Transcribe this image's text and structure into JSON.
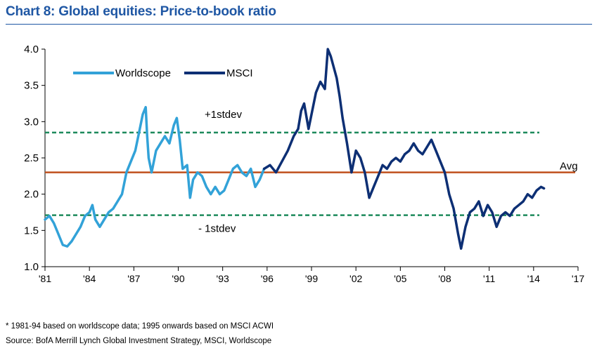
{
  "title": "Chart 8: Global equities: Price-to-book ratio",
  "footnote": "* 1981-94 based on worldscope data; 1995 onwards based on MSCI ACWI",
  "source": "Source: BofA Merrill Lynch Global Investment Strategy, MSCI, Worldscope",
  "colors": {
    "title": "#1f57a4",
    "worldscope": "#32a2d8",
    "msci": "#0d2f74",
    "avg": "#c0501d",
    "stdev": "#1d8a5c"
  },
  "chart_data": {
    "type": "line",
    "title": "Chart 8: Global equities: Price-to-book ratio",
    "xlabel": "",
    "ylabel": "",
    "xlim": [
      1981,
      2017
    ],
    "ylim": [
      1.0,
      4.0
    ],
    "grid": false,
    "legend_position": "top-left",
    "x_ticks": [
      1981,
      1984,
      1987,
      1990,
      1993,
      1996,
      1999,
      2002,
      2005,
      2008,
      2011,
      2014,
      2017
    ],
    "x_tick_labels": [
      "'81",
      "'84",
      "'87",
      "'90",
      "'93",
      "'96",
      "'99",
      "'02",
      "'05",
      "'08",
      "'11",
      "'14",
      "'17"
    ],
    "y_ticks": [
      1.0,
      1.5,
      2.0,
      2.5,
      3.0,
      3.5,
      4.0
    ],
    "y_tick_labels": [
      "1.0",
      "1.5",
      "2.0",
      "2.5",
      "3.0",
      "3.5",
      "4.0"
    ],
    "series": [
      {
        "name": "Worldscope",
        "x": [
          1981.0,
          1981.3,
          1981.6,
          1981.9,
          1982.2,
          1982.5,
          1982.8,
          1983.1,
          1983.4,
          1983.7,
          1984.0,
          1984.2,
          1984.4,
          1984.7,
          1985.0,
          1985.3,
          1985.6,
          1985.9,
          1986.2,
          1986.5,
          1986.8,
          1987.1,
          1987.4,
          1987.6,
          1987.8,
          1987.9,
          1988.0,
          1988.2,
          1988.5,
          1988.8,
          1989.1,
          1989.4,
          1989.7,
          1989.9,
          1990.1,
          1990.3,
          1990.6,
          1990.8,
          1991.0,
          1991.3,
          1991.6,
          1991.9,
          1992.2,
          1992.5,
          1992.8,
          1993.1,
          1993.4,
          1993.7,
          1994.0,
          1994.3,
          1994.6,
          1994.9,
          1995.2,
          1995.5,
          1995.8
        ],
        "values": [
          1.65,
          1.7,
          1.6,
          1.45,
          1.3,
          1.28,
          1.35,
          1.45,
          1.55,
          1.7,
          1.75,
          1.85,
          1.65,
          1.55,
          1.65,
          1.75,
          1.8,
          1.9,
          2.0,
          2.3,
          2.45,
          2.6,
          2.9,
          3.1,
          3.2,
          2.8,
          2.5,
          2.3,
          2.6,
          2.7,
          2.8,
          2.7,
          2.95,
          3.05,
          2.75,
          2.35,
          2.4,
          1.95,
          2.2,
          2.3,
          2.25,
          2.1,
          2.0,
          2.1,
          2.0,
          2.05,
          2.2,
          2.35,
          2.4,
          2.3,
          2.25,
          2.35,
          2.1,
          2.2,
          2.35
        ]
      },
      {
        "name": "MSCI",
        "x": [
          1995.8,
          1996.2,
          1996.6,
          1997.0,
          1997.4,
          1997.8,
          1998.1,
          1998.3,
          1998.5,
          1998.8,
          1999.0,
          1999.3,
          1999.6,
          1999.9,
          2000.1,
          2000.3,
          2000.5,
          2000.7,
          2000.9,
          2001.1,
          2001.4,
          2001.7,
          2002.0,
          2002.3,
          2002.6,
          2002.9,
          2003.2,
          2003.5,
          2003.8,
          2004.1,
          2004.4,
          2004.7,
          2005.0,
          2005.3,
          2005.6,
          2005.9,
          2006.2,
          2006.5,
          2006.8,
          2007.1,
          2007.4,
          2007.7,
          2008.0,
          2008.3,
          2008.6,
          2008.9,
          2009.1,
          2009.4,
          2009.7,
          2010.0,
          2010.3,
          2010.6,
          2010.9,
          2011.2,
          2011.5,
          2011.8,
          2012.1,
          2012.4,
          2012.7,
          2013.0,
          2013.3,
          2013.6,
          2013.9,
          2014.2,
          2014.5,
          2014.7
        ],
        "values": [
          2.35,
          2.4,
          2.3,
          2.45,
          2.6,
          2.8,
          2.9,
          3.15,
          3.25,
          2.9,
          3.1,
          3.4,
          3.55,
          3.45,
          4.0,
          3.9,
          3.75,
          3.6,
          3.35,
          3.05,
          2.7,
          2.3,
          2.6,
          2.5,
          2.3,
          1.95,
          2.1,
          2.25,
          2.4,
          2.35,
          2.45,
          2.5,
          2.45,
          2.55,
          2.6,
          2.7,
          2.6,
          2.55,
          2.65,
          2.75,
          2.6,
          2.45,
          2.3,
          2.0,
          1.8,
          1.45,
          1.25,
          1.55,
          1.75,
          1.8,
          1.9,
          1.7,
          1.85,
          1.75,
          1.55,
          1.7,
          1.75,
          1.7,
          1.8,
          1.85,
          1.9,
          2.0,
          1.95,
          2.05,
          2.1,
          2.08
        ]
      }
    ],
    "reference_lines": [
      {
        "label": "Avg",
        "value": 2.3,
        "style": "solid"
      },
      {
        "label": "+1stdev",
        "value": 2.85,
        "style": "dashed"
      },
      {
        "label": "- 1stdev",
        "value": 1.71,
        "style": "dashed"
      }
    ]
  }
}
